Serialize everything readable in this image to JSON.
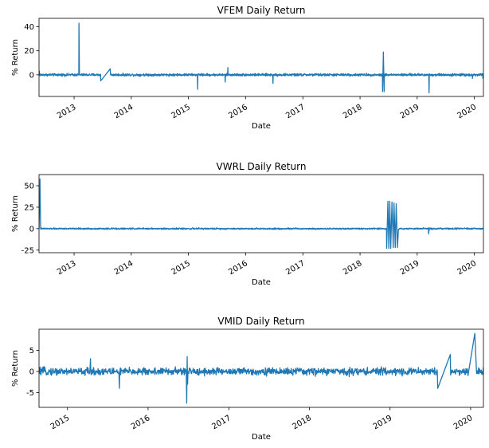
{
  "chart_data": [
    {
      "type": "line",
      "title": "VFEM Daily Return",
      "xlabel": "Date",
      "ylabel": "% Return",
      "x_range": [
        "2012-05-22",
        "2020-02-28"
      ],
      "ylim": [
        -18,
        47
      ],
      "yticks": [
        0,
        20,
        40
      ],
      "xticks": [
        {
          "date": "2013-01-01",
          "label": "2013"
        },
        {
          "date": "2014-01-01",
          "label": "2014"
        },
        {
          "date": "2015-01-01",
          "label": "2015"
        },
        {
          "date": "2016-01-01",
          "label": "2016"
        },
        {
          "date": "2017-01-01",
          "label": "2017"
        },
        {
          "date": "2018-01-01",
          "label": "2018"
        },
        {
          "date": "2019-01-01",
          "label": "2019"
        },
        {
          "date": "2020-01-01",
          "label": "2020"
        }
      ],
      "baseline_noise": 1.5,
      "series": [
        {
          "color": "#1f77b4",
          "points": [
            {
              "date": "2012-05-22",
              "value": 0
            },
            {
              "date": "2012-05-24",
              "value": 3
            },
            {
              "date": "2013-01-31",
              "value": 0
            },
            {
              "date": "2013-02-01",
              "value": 43
            },
            {
              "date": "2013-02-04",
              "value": 0
            },
            {
              "date": "2013-06-20",
              "value": -5
            },
            {
              "date": "2013-08-20",
              "value": 5
            },
            {
              "date": "2015-03-01",
              "value": -12
            },
            {
              "date": "2015-08-24",
              "value": -6
            },
            {
              "date": "2015-09-10",
              "value": 6
            },
            {
              "date": "2016-06-24",
              "value": -7
            },
            {
              "date": "2018-05-25",
              "value": -14
            },
            {
              "date": "2018-05-30",
              "value": 19
            },
            {
              "date": "2018-06-04",
              "value": -14
            },
            {
              "date": "2019-03-18",
              "value": -15
            },
            {
              "date": "2019-12-20",
              "value": -3
            },
            {
              "date": "2020-02-25",
              "value": -3
            },
            {
              "date": "2020-02-28",
              "value": 0
            }
          ]
        }
      ]
    },
    {
      "type": "line",
      "title": "VWRL Daily Return",
      "xlabel": "Date",
      "ylabel": "% Return",
      "x_range": [
        "2012-05-22",
        "2020-02-28"
      ],
      "ylim": [
        -28,
        63
      ],
      "yticks": [
        -25,
        0,
        25,
        50
      ],
      "xticks": [
        {
          "date": "2013-01-01",
          "label": "2013"
        },
        {
          "date": "2014-01-01",
          "label": "2014"
        },
        {
          "date": "2015-01-01",
          "label": "2015"
        },
        {
          "date": "2016-01-01",
          "label": "2016"
        },
        {
          "date": "2017-01-01",
          "label": "2017"
        },
        {
          "date": "2018-01-01",
          "label": "2018"
        },
        {
          "date": "2019-01-01",
          "label": "2019"
        },
        {
          "date": "2020-01-01",
          "label": "2020"
        }
      ],
      "baseline_noise": 1.2,
      "series": [
        {
          "color": "#1f77b4",
          "points": [
            {
              "date": "2012-05-22",
              "value": 0
            },
            {
              "date": "2012-05-28",
              "value": 58
            },
            {
              "date": "2012-06-01",
              "value": 0
            },
            {
              "date": "2018-06-01",
              "value": 0
            },
            {
              "date": "2018-06-20",
              "value": -23
            },
            {
              "date": "2018-06-28",
              "value": 32
            },
            {
              "date": "2018-07-04",
              "value": -23
            },
            {
              "date": "2018-07-10",
              "value": 32
            },
            {
              "date": "2018-07-16",
              "value": -23
            },
            {
              "date": "2018-07-24",
              "value": 31
            },
            {
              "date": "2018-08-01",
              "value": -22
            },
            {
              "date": "2018-08-06",
              "value": 30
            },
            {
              "date": "2018-08-14",
              "value": -22
            },
            {
              "date": "2018-08-20",
              "value": 29
            },
            {
              "date": "2018-08-28",
              "value": -22
            },
            {
              "date": "2018-09-03",
              "value": -1
            },
            {
              "date": "2019-03-15",
              "value": -6
            },
            {
              "date": "2019-03-20",
              "value": 1
            },
            {
              "date": "2020-02-28",
              "value": 0
            }
          ]
        }
      ]
    },
    {
      "type": "line",
      "title": "VMID Daily Return",
      "xlabel": "Date",
      "ylabel": "% Return",
      "x_range": [
        "2014-08-25",
        "2020-02-28"
      ],
      "ylim": [
        -8.5,
        10
      ],
      "yticks": [
        -5,
        0,
        5
      ],
      "xticks": [
        {
          "date": "2015-01-01",
          "label": "2015"
        },
        {
          "date": "2016-01-01",
          "label": "2016"
        },
        {
          "date": "2017-01-01",
          "label": "2017"
        },
        {
          "date": "2018-01-01",
          "label": "2018"
        },
        {
          "date": "2019-01-01",
          "label": "2019"
        },
        {
          "date": "2020-01-01",
          "label": "2020"
        }
      ],
      "baseline_noise": 1.3,
      "series": [
        {
          "color": "#1f77b4",
          "points": [
            {
              "date": "2014-08-25",
              "value": 0
            },
            {
              "date": "2015-04-15",
              "value": 3
            },
            {
              "date": "2015-08-24",
              "value": -4
            },
            {
              "date": "2016-06-24",
              "value": -7.5
            },
            {
              "date": "2016-06-26",
              "value": 3.5
            },
            {
              "date": "2016-06-28",
              "value": -3
            },
            {
              "date": "2019-08-05",
              "value": -4
            },
            {
              "date": "2019-10-01",
              "value": 4
            },
            {
              "date": "2019-10-15",
              "value": 0
            },
            {
              "date": "2019-12-20",
              "value": -1
            },
            {
              "date": "2020-01-20",
              "value": 9
            },
            {
              "date": "2020-01-28",
              "value": -0.5
            },
            {
              "date": "2020-02-28",
              "value": 1
            }
          ]
        }
      ]
    }
  ]
}
